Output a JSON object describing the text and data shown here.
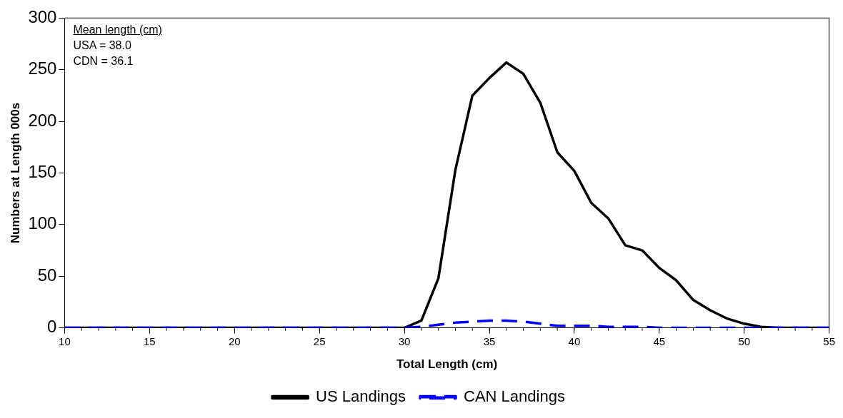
{
  "chart_data": {
    "type": "line",
    "xlabel": "Total Length (cm)",
    "ylabel": "Numbers at Length 000s",
    "x": [
      10,
      11,
      12,
      13,
      14,
      15,
      16,
      17,
      18,
      19,
      20,
      21,
      22,
      23,
      24,
      25,
      26,
      27,
      28,
      29,
      30,
      31,
      32,
      33,
      34,
      35,
      36,
      37,
      38,
      39,
      40,
      41,
      42,
      43,
      44,
      45,
      46,
      47,
      48,
      49,
      50,
      51,
      52,
      53,
      54,
      55
    ],
    "series": [
      {
        "name": "US Landings",
        "color": "#000000",
        "line_style": "solid",
        "values": [
          0,
          0,
          0,
          0,
          0,
          0,
          0,
          0,
          0,
          0,
          0,
          0,
          0,
          0,
          0,
          0,
          0,
          0,
          0,
          0,
          0,
          7,
          48,
          153,
          225,
          242,
          257,
          246,
          218,
          170,
          152,
          121,
          106,
          80,
          75,
          58,
          46,
          27,
          17,
          9,
          4,
          1,
          0,
          0,
          0,
          0
        ]
      },
      {
        "name": "CAN Landings",
        "color": "#0000ff",
        "line_style": "dashed",
        "values": [
          0,
          0,
          0,
          0,
          0,
          0,
          0,
          0,
          0,
          0,
          0,
          0,
          0,
          0,
          0,
          0,
          0,
          0,
          0,
          0,
          0,
          1,
          3,
          5,
          6,
          7,
          7,
          6,
          4,
          2,
          2,
          2,
          1,
          1,
          1,
          0,
          0,
          0,
          0,
          0,
          0,
          0,
          0,
          0,
          0,
          0
        ]
      }
    ],
    "xlim": [
      10,
      55
    ],
    "xticks": [
      10,
      15,
      20,
      25,
      30,
      35,
      40,
      45,
      50,
      55
    ],
    "ylim": [
      0,
      300
    ],
    "yticks": [
      0,
      50,
      100,
      150,
      200,
      250,
      300
    ],
    "grid": false,
    "legend": "bottom",
    "marker": "none",
    "annotations": [
      "Mean length (cm)",
      "USA = 38.0",
      "CDN = 36.1"
    ]
  }
}
